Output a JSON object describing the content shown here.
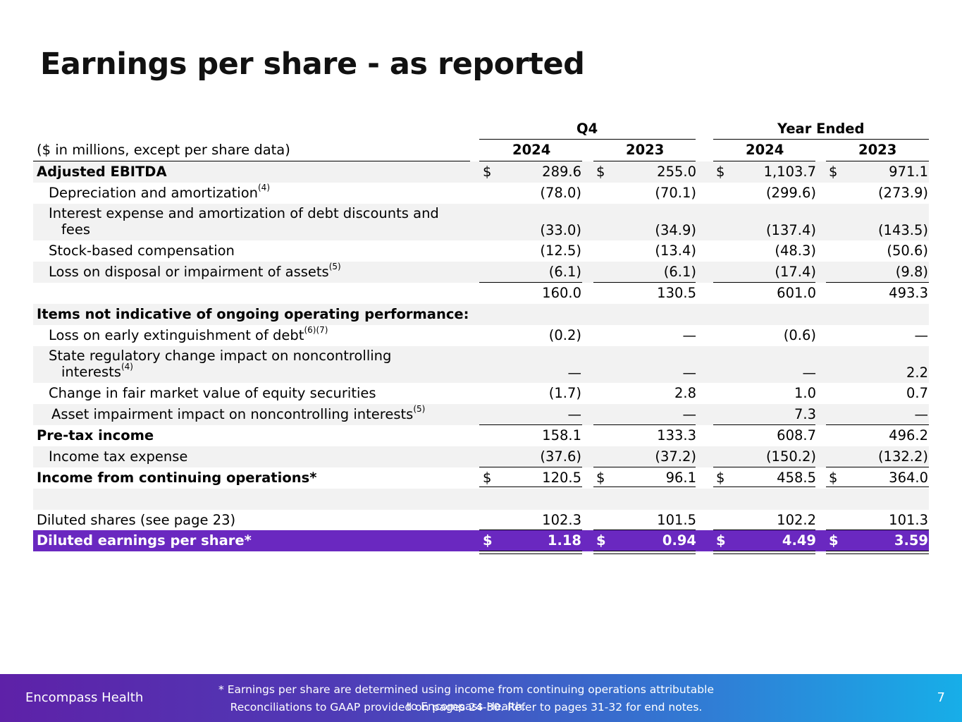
{
  "page": {
    "title": "Earnings per share - as reported",
    "page_number": "7",
    "brand": "Encompass Health",
    "footnote_line1": "* Earnings per share are determined using income from continuing operations attributable to Encompass Health.",
    "footnote_line2": "Reconciliations to GAAP provided on pages 24-30. Refer to pages 31-32 for end notes."
  },
  "table": {
    "group_q4": "Q4",
    "group_year": "Year Ended",
    "units_label": "($ in millions, except per share data)",
    "years": [
      "2024",
      "2023",
      "2024",
      "2023"
    ],
    "rows": {
      "adj_ebitda": {
        "label": "Adjusted EBITDA",
        "dollar": "$",
        "v": [
          "289.6",
          "255.0",
          "1,103.7",
          "971.1"
        ]
      },
      "dep_amort": {
        "label": "Depreciation and amortization",
        "sup": "(4)",
        "v": [
          "(78.0)",
          "(70.1)",
          "(299.6)",
          "(273.9)"
        ]
      },
      "interest": {
        "label": "Interest expense and amortization of debt discounts and",
        "label_cont": "fees",
        "v": [
          "(33.0)",
          "(34.9)",
          "(137.4)",
          "(143.5)"
        ]
      },
      "stock_comp": {
        "label": "Stock-based compensation",
        "v": [
          "(12.5)",
          "(13.4)",
          "(48.3)",
          "(50.6)"
        ]
      },
      "loss_disposal": {
        "label": "Loss on disposal or impairment of assets",
        "sup": "(5)",
        "v": [
          "(6.1)",
          "(6.1)",
          "(17.4)",
          "(9.8)"
        ]
      },
      "subtotal": {
        "v": [
          "160.0",
          "130.5",
          "601.0",
          "493.3"
        ]
      },
      "items_header": {
        "label": "Items not indicative of ongoing operating performance:"
      },
      "loss_extinguish": {
        "label": "Loss on early extinguishment of debt",
        "sup": "(6)(7)",
        "v": [
          "(0.2)",
          "—",
          "(0.6)",
          "—"
        ]
      },
      "state_reg": {
        "label": "State regulatory change impact on noncontrolling",
        "label_cont": "interests",
        "sup": "(4)",
        "v": [
          "—",
          "—",
          "—",
          "2.2"
        ]
      },
      "fair_value": {
        "label": "Change in fair market value of equity securities",
        "v": [
          "(1.7)",
          "2.8",
          "1.0",
          "0.7"
        ]
      },
      "asset_impair": {
        "label": "Asset impairment impact on noncontrolling interests",
        "sup": "(5)",
        "v": [
          "—",
          "—",
          "7.3",
          "—"
        ]
      },
      "pretax": {
        "label": "Pre-tax income",
        "v": [
          "158.1",
          "133.3",
          "608.7",
          "496.2"
        ]
      },
      "income_tax": {
        "label": "Income tax expense",
        "v": [
          "(37.6)",
          "(37.2)",
          "(150.2)",
          "(132.2)"
        ]
      },
      "income_cont": {
        "label": "Income from continuing operations*",
        "dollar": "$",
        "v": [
          "120.5",
          "96.1",
          "458.5",
          "364.0"
        ]
      },
      "diluted_shares": {
        "label": "Diluted shares (see page 23)",
        "v": [
          "102.3",
          "101.5",
          "102.2",
          "101.3"
        ]
      },
      "diluted_eps": {
        "label": "Diluted earnings per share*",
        "dollar": "$",
        "v": [
          "1.18",
          "0.94",
          "4.49",
          "3.59"
        ]
      }
    }
  },
  "colors": {
    "highlight": "#6a28c0",
    "shade": "#f2f2f2"
  }
}
